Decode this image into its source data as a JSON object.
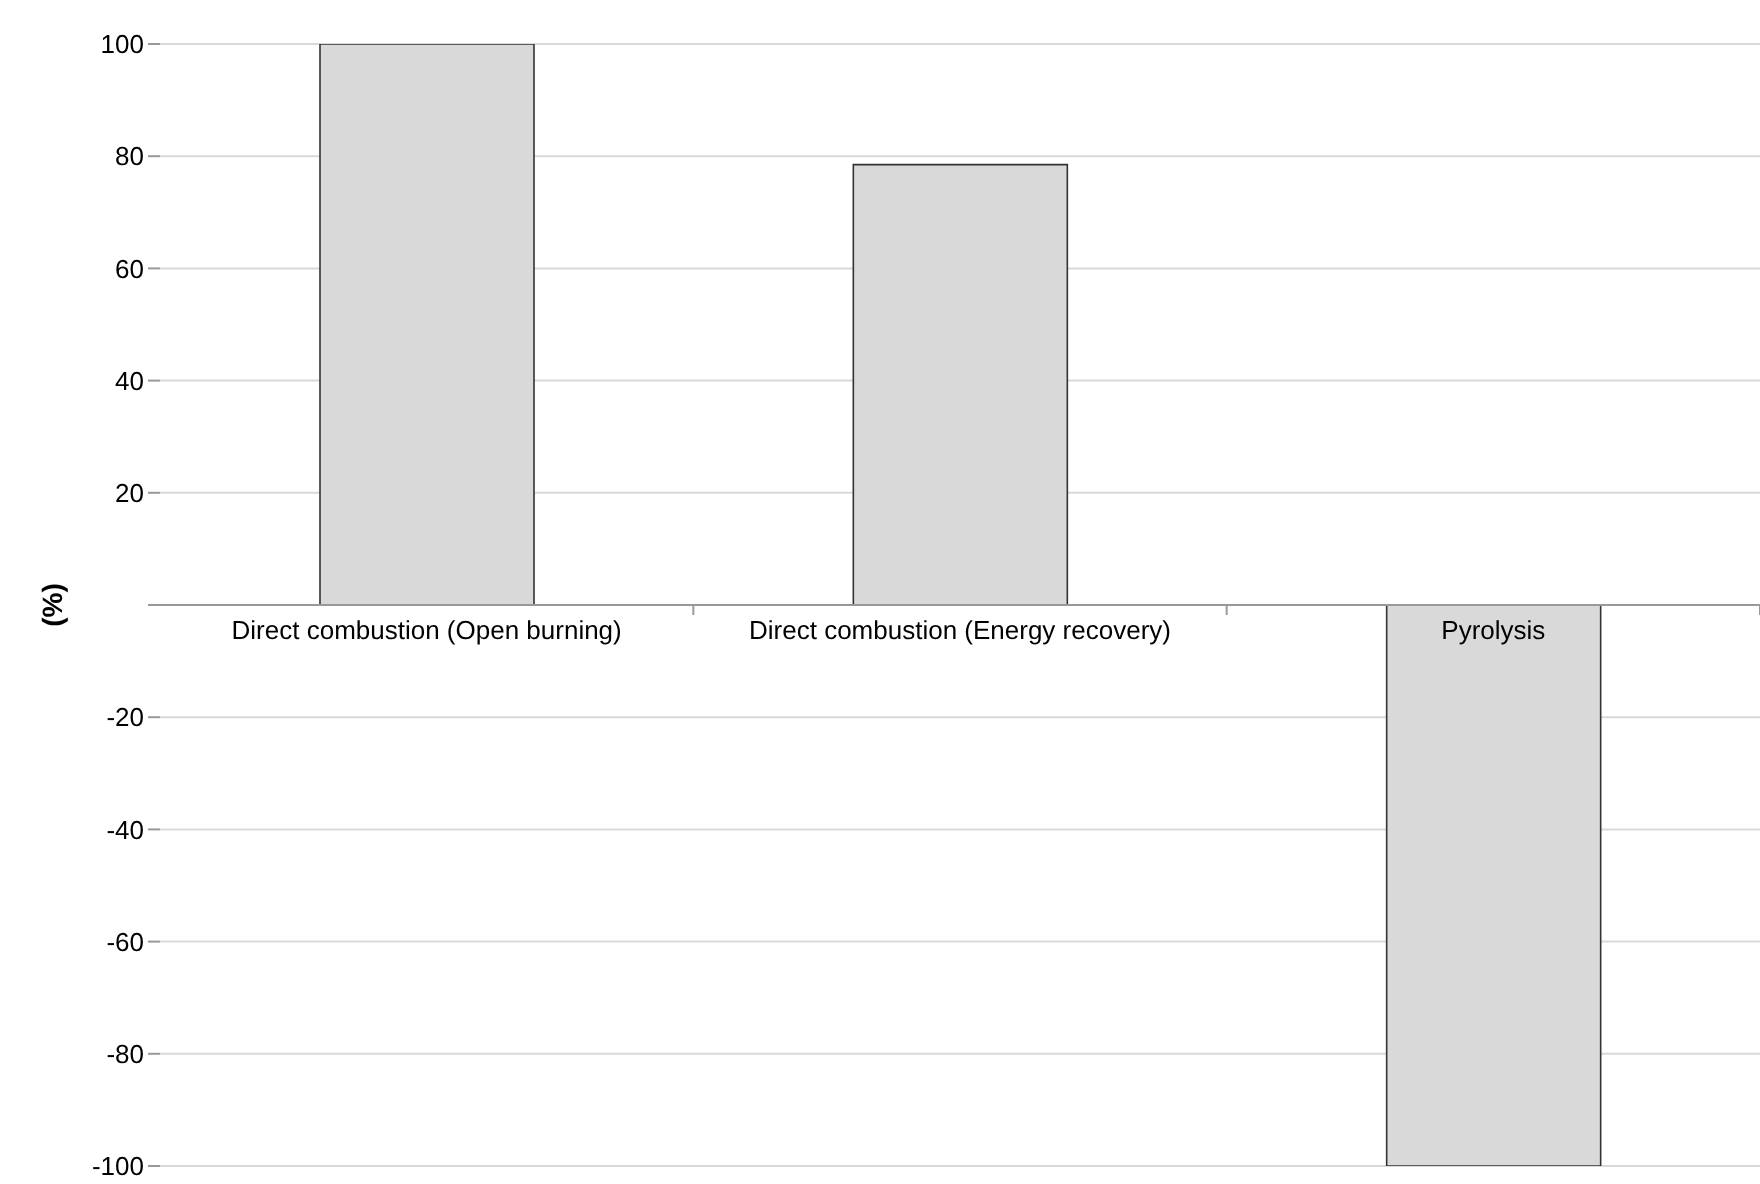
{
  "chart_data": {
    "type": "bar",
    "ylabel": "(%)",
    "categories": [
      "Direct combustion (Open burning)",
      "Direct combustion (Energy recovery)",
      "Pyrolysis"
    ],
    "values": [
      100,
      78.5,
      -100
    ],
    "color": "#d9d9d9",
    "ylim": [
      -100,
      100
    ],
    "yticks": [
      -100,
      -80,
      -60,
      -40,
      -20,
      {
        "value": 0,
        "label": null
      },
      20,
      40,
      60,
      80,
      100
    ],
    "grid": "y"
  }
}
